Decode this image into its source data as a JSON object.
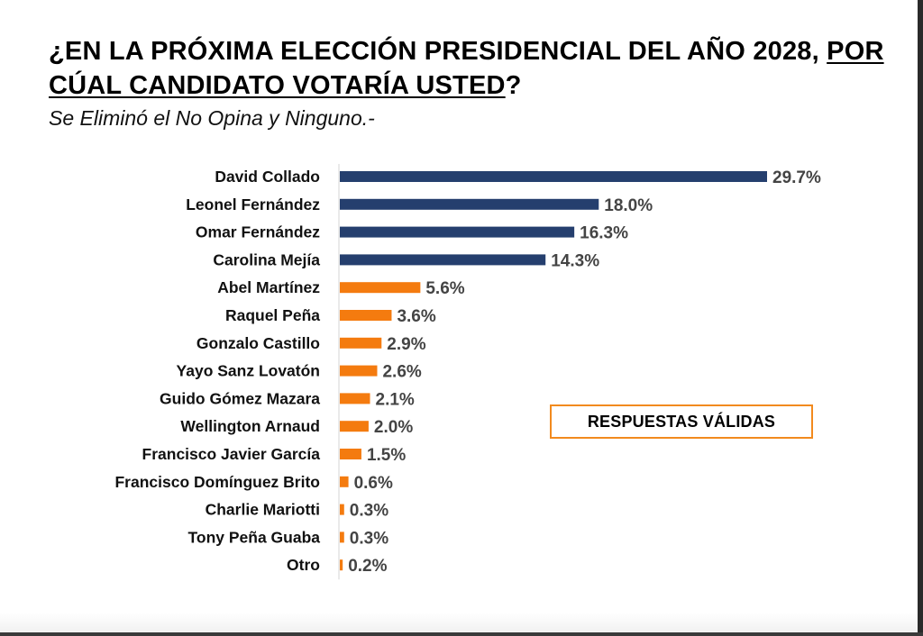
{
  "header": {
    "title_part1": "¿EN LA PRÓXIMA ELECCIÓN PRESIDENCIAL DEL AÑO 2028, ",
    "title_underlined": "POR CÚAL CANDIDATO VOTARÍA USTED",
    "title_end": "?",
    "subtitle": "Se Eliminó el No Opina y Ninguno.-"
  },
  "badge": {
    "label": "RESPUESTAS VÁLIDAS"
  },
  "colors": {
    "primary": "#253f6e",
    "secondary": "#f47b0f",
    "axis": "#e3e3e3",
    "badge_border": "#f28a1e"
  },
  "chart_data": {
    "type": "bar",
    "orientation": "horizontal",
    "title": "¿EN LA PRÓXIMA ELECCIÓN PRESIDENCIAL DEL AÑO 2028, POR CÚAL CANDIDATO VOTARÍA USTED?",
    "subtitle": "Se Eliminó el No Opina y Ninguno.-",
    "xlabel": "",
    "ylabel": "",
    "unit": "%",
    "xlim": [
      0,
      30
    ],
    "grid": false,
    "legend": "none",
    "annotation": "RESPUESTAS VÁLIDAS",
    "categories": [
      "David Collado",
      "Leonel Fernández",
      "Omar Fernández",
      "Carolina Mejía",
      "Abel Martínez",
      "Raquel Peña",
      "Gonzalo Castillo",
      "Yayo Sanz Lovatón",
      "Guido Gómez Mazara",
      "Wellington Arnaud",
      "Francisco Javier García",
      "Francisco Domínguez Brito",
      "Charlie Mariotti",
      "Tony Peña Guaba",
      "Otro"
    ],
    "values": [
      29.7,
      18.0,
      16.3,
      14.3,
      5.6,
      3.6,
      2.9,
      2.6,
      2.1,
      2.0,
      1.5,
      0.6,
      0.3,
      0.3,
      0.2
    ],
    "labels": [
      "29.7%",
      "18.0%",
      "16.3%",
      "14.3%",
      "5.6%",
      "3.6%",
      "2.9%",
      "2.6%",
      "2.1%",
      "2.0%",
      "1.5%",
      "0.6%",
      "0.3%",
      "0.3%",
      "0.2%"
    ],
    "bar_colors": [
      "#253f6e",
      "#253f6e",
      "#253f6e",
      "#253f6e",
      "#f47b0f",
      "#f47b0f",
      "#f47b0f",
      "#f47b0f",
      "#f47b0f",
      "#f47b0f",
      "#f47b0f",
      "#f47b0f",
      "#f47b0f",
      "#f47b0f",
      "#f47b0f"
    ]
  }
}
